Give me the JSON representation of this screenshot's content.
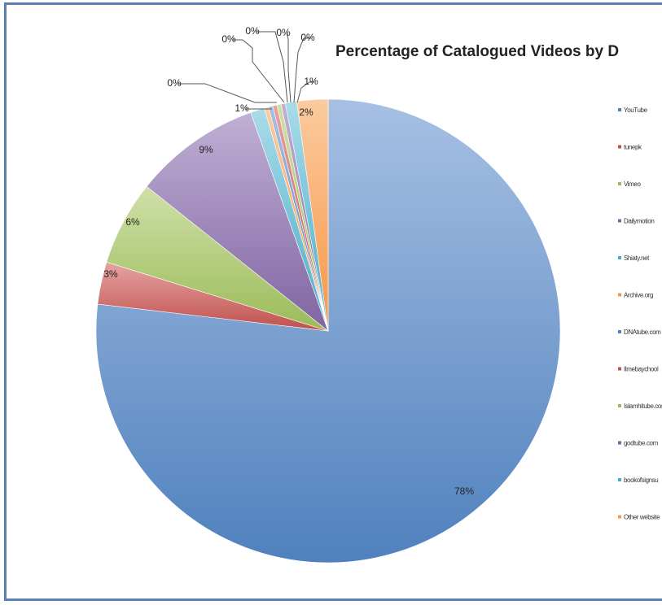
{
  "chart_data": {
    "type": "pie",
    "title": "Percentage of Catalogued Videos by D",
    "start_angle_deg": 0,
    "direction": "clockwise",
    "legend_position": "right",
    "slices": [
      {
        "name": "YouTube",
        "label": "78%",
        "value": 78,
        "color": "#4f81bd",
        "color_light": "#a7c0e3"
      },
      {
        "name": "tunepk",
        "label": "3%",
        "value": 3,
        "color": "#c0504d",
        "color_light": "#e5a4a2"
      },
      {
        "name": "Vimeo",
        "label": "6%",
        "value": 6,
        "color": "#9bbb59",
        "color_light": "#cfe0a8"
      },
      {
        "name": "Dailymotion",
        "label": "9%",
        "value": 9,
        "color": "#8064a2",
        "color_light": "#c0b0d4"
      },
      {
        "name": "Shiaty.net",
        "label": "1%",
        "value": 1,
        "color": "#4bacc6",
        "color_light": "#a9dbea"
      },
      {
        "name": "Archive.org",
        "label": "0%",
        "value": 0.3,
        "color": "#f79646",
        "color_light": "#fbcb9f"
      },
      {
        "name": "DNAtube.com",
        "label": "0%",
        "value": 0.3,
        "color": "#4f81bd",
        "color_light": "#a7c0e3"
      },
      {
        "name": "Ilmebaychool",
        "label": "0%",
        "value": 0.3,
        "color": "#c0504d",
        "color_light": "#e5a4a2"
      },
      {
        "name": "Islamhitube.com",
        "label": "0%",
        "value": 0.3,
        "color": "#9bbb59",
        "color_light": "#cfe0a8"
      },
      {
        "name": "godtube.com",
        "label": "0%",
        "value": 0.3,
        "color": "#8064a2",
        "color_light": "#c0b0d4"
      },
      {
        "name": "bookofsignsu",
        "label": "1%",
        "value": 0.8,
        "color": "#4bacc6",
        "color_light": "#a9dbea"
      },
      {
        "name": "Other website",
        "label": "2%",
        "value": 2.2,
        "color": "#f79646",
        "color_light": "#fbcb9f"
      }
    ]
  }
}
